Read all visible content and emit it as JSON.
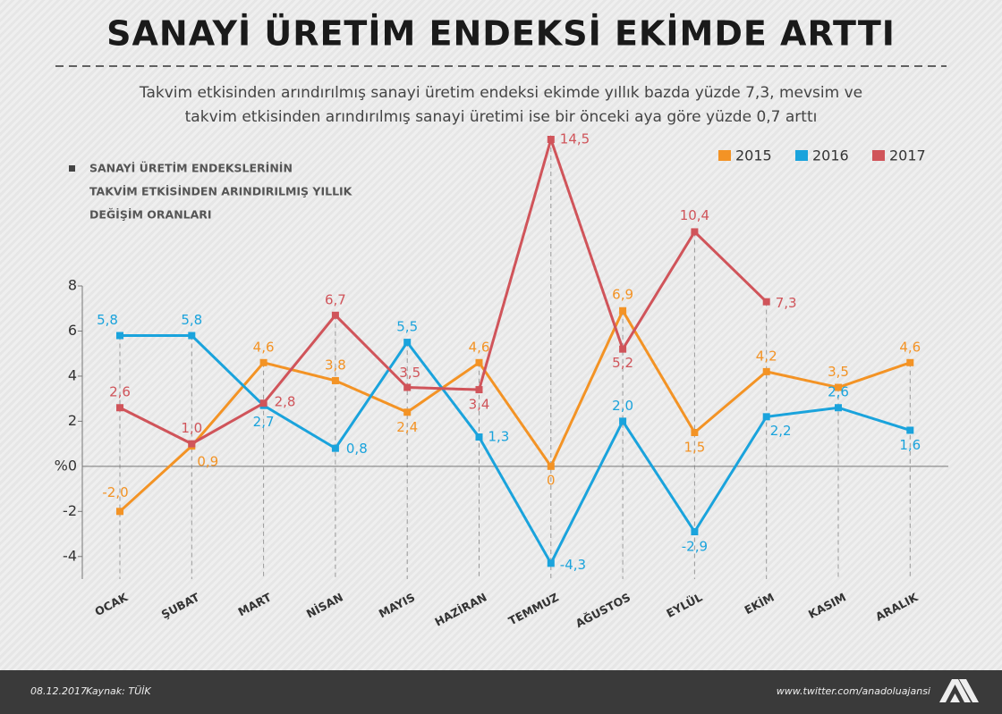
{
  "title": "SANAYİ ÜRETİM ENDEKSİ EKİMDE ARTTI",
  "subtitle": [
    "Takvim etkisinden arındırılmış sanayi üretim endeksi ekimde yıllık bazda yüzde 7,3, mevsim ve",
    "takvim etkisinden arındırılmış sanayi üretimi ise bir önceki aya göre yüzde 0,7 arttı"
  ],
  "chart_data": {
    "type": "line",
    "note": [
      "SANAYİ ÜRETİM ENDEKSLERİNİN",
      "TAKVİM ETKİSİNDEN ARINDIRILMIŞ YILLIK",
      "DEĞİŞİM ORANLARI"
    ],
    "categories": [
      "OCAK",
      "ŞUBAT",
      "MART",
      "NİSAN",
      "MAYIS",
      "HAZİRAN",
      "TEMMUZ",
      "AĞUSTOS",
      "EYLÜL",
      "EKİM",
      "KASIM",
      "ARALIK"
    ],
    "series": [
      {
        "name": "2015",
        "color": "#f39325",
        "values": [
          -2.0,
          0.9,
          4.6,
          3.8,
          2.4,
          4.6,
          0,
          6.9,
          1.5,
          4.2,
          3.5,
          4.6
        ],
        "value_labels": [
          "-2,0",
          "0,9",
          "4,6",
          "3,8",
          "2,4",
          "4,6",
          "0",
          "6,9",
          "1,5",
          "4,2",
          "3,5",
          "4,6"
        ]
      },
      {
        "name": "2016",
        "color": "#1aa3dc",
        "values": [
          5.8,
          5.8,
          2.7,
          0.8,
          5.5,
          1.3,
          -4.3,
          2.0,
          -2.9,
          2.2,
          2.6,
          1.6
        ],
        "value_labels": [
          "5,8",
          "5,8",
          "2,7",
          "0,8",
          "5,5",
          "1,3",
          "-4,3",
          "2,0",
          "-2,9",
          "2,2",
          "2,6",
          "1,6"
        ]
      },
      {
        "name": "2017",
        "color": "#d0545a",
        "values": [
          2.6,
          1.0,
          2.8,
          6.7,
          3.5,
          3.4,
          14.5,
          5.2,
          10.4,
          7.3,
          null,
          null
        ],
        "value_labels": [
          "2,6",
          "1,0",
          "2,8",
          "6,7",
          "3,5",
          "3,4",
          "14,5",
          "5,2",
          "10,4",
          "7,3",
          null,
          null
        ]
      }
    ],
    "ylim": [
      -5,
      8
    ],
    "yticks": [
      8,
      6,
      4,
      2,
      {
        "value": 0,
        "label": "%0"
      },
      -2,
      -4
    ]
  },
  "footer": {
    "date": "08.12.2017",
    "source": "Kaynak: TÜİK",
    "url": "www.twitter.com/anadoluajansi"
  }
}
